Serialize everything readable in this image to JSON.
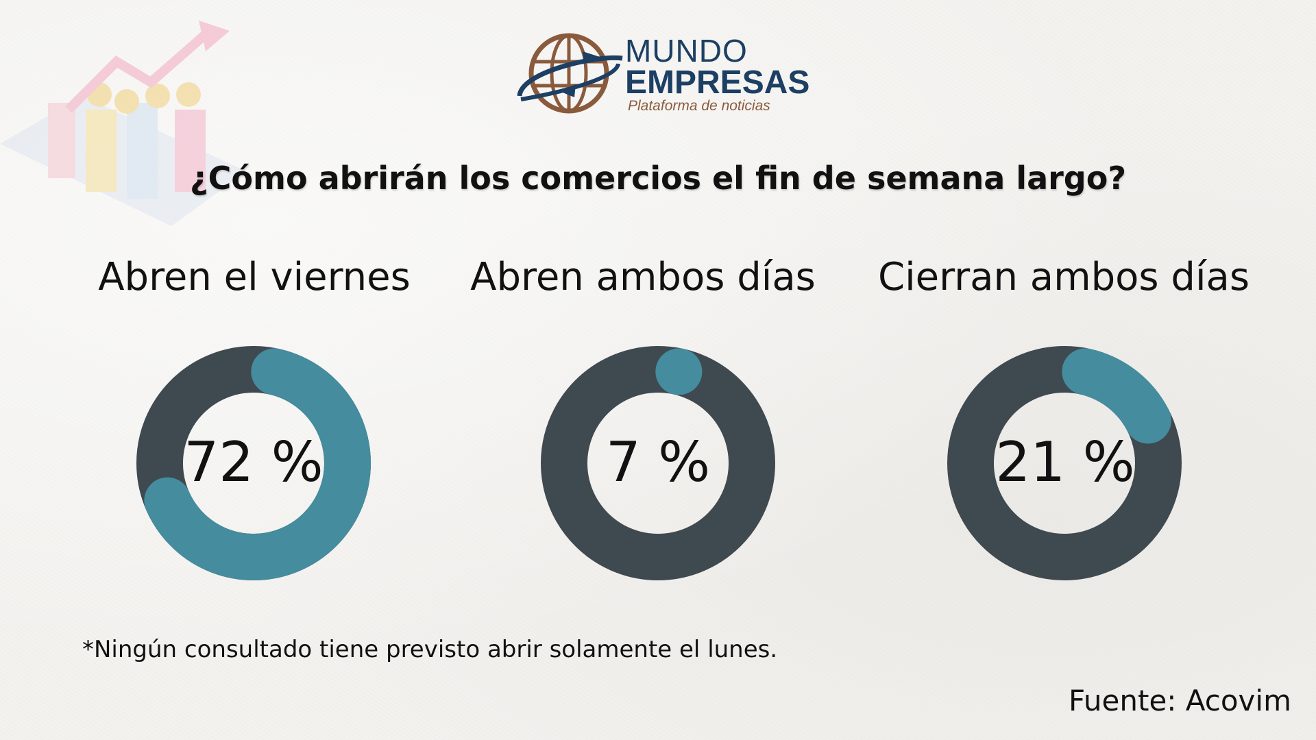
{
  "brand": {
    "line1": "MUNDO",
    "line2": "EMPRESAS",
    "tagline": "Plataforma de noticias",
    "colors": {
      "navy": "#1c3f63",
      "brown": "#8a5a3c"
    }
  },
  "question": "¿Cómo abrirán los comercios el fin de semana largo?",
  "chart_data": {
    "type": "pie",
    "variant": "donut",
    "colors": {
      "value": "#448c9e",
      "remainder": "#3f4950"
    },
    "categories": [
      "Abren el viernes",
      "Abren ambos días",
      "Cierran ambos días"
    ],
    "values": [
      72,
      7,
      21
    ],
    "labels": [
      "72 %",
      "7 %",
      "21 %"
    ]
  },
  "footnote": "*Ningún consultado tiene previsto abrir solamente el lunes.",
  "source": "Fuente: Acovim"
}
